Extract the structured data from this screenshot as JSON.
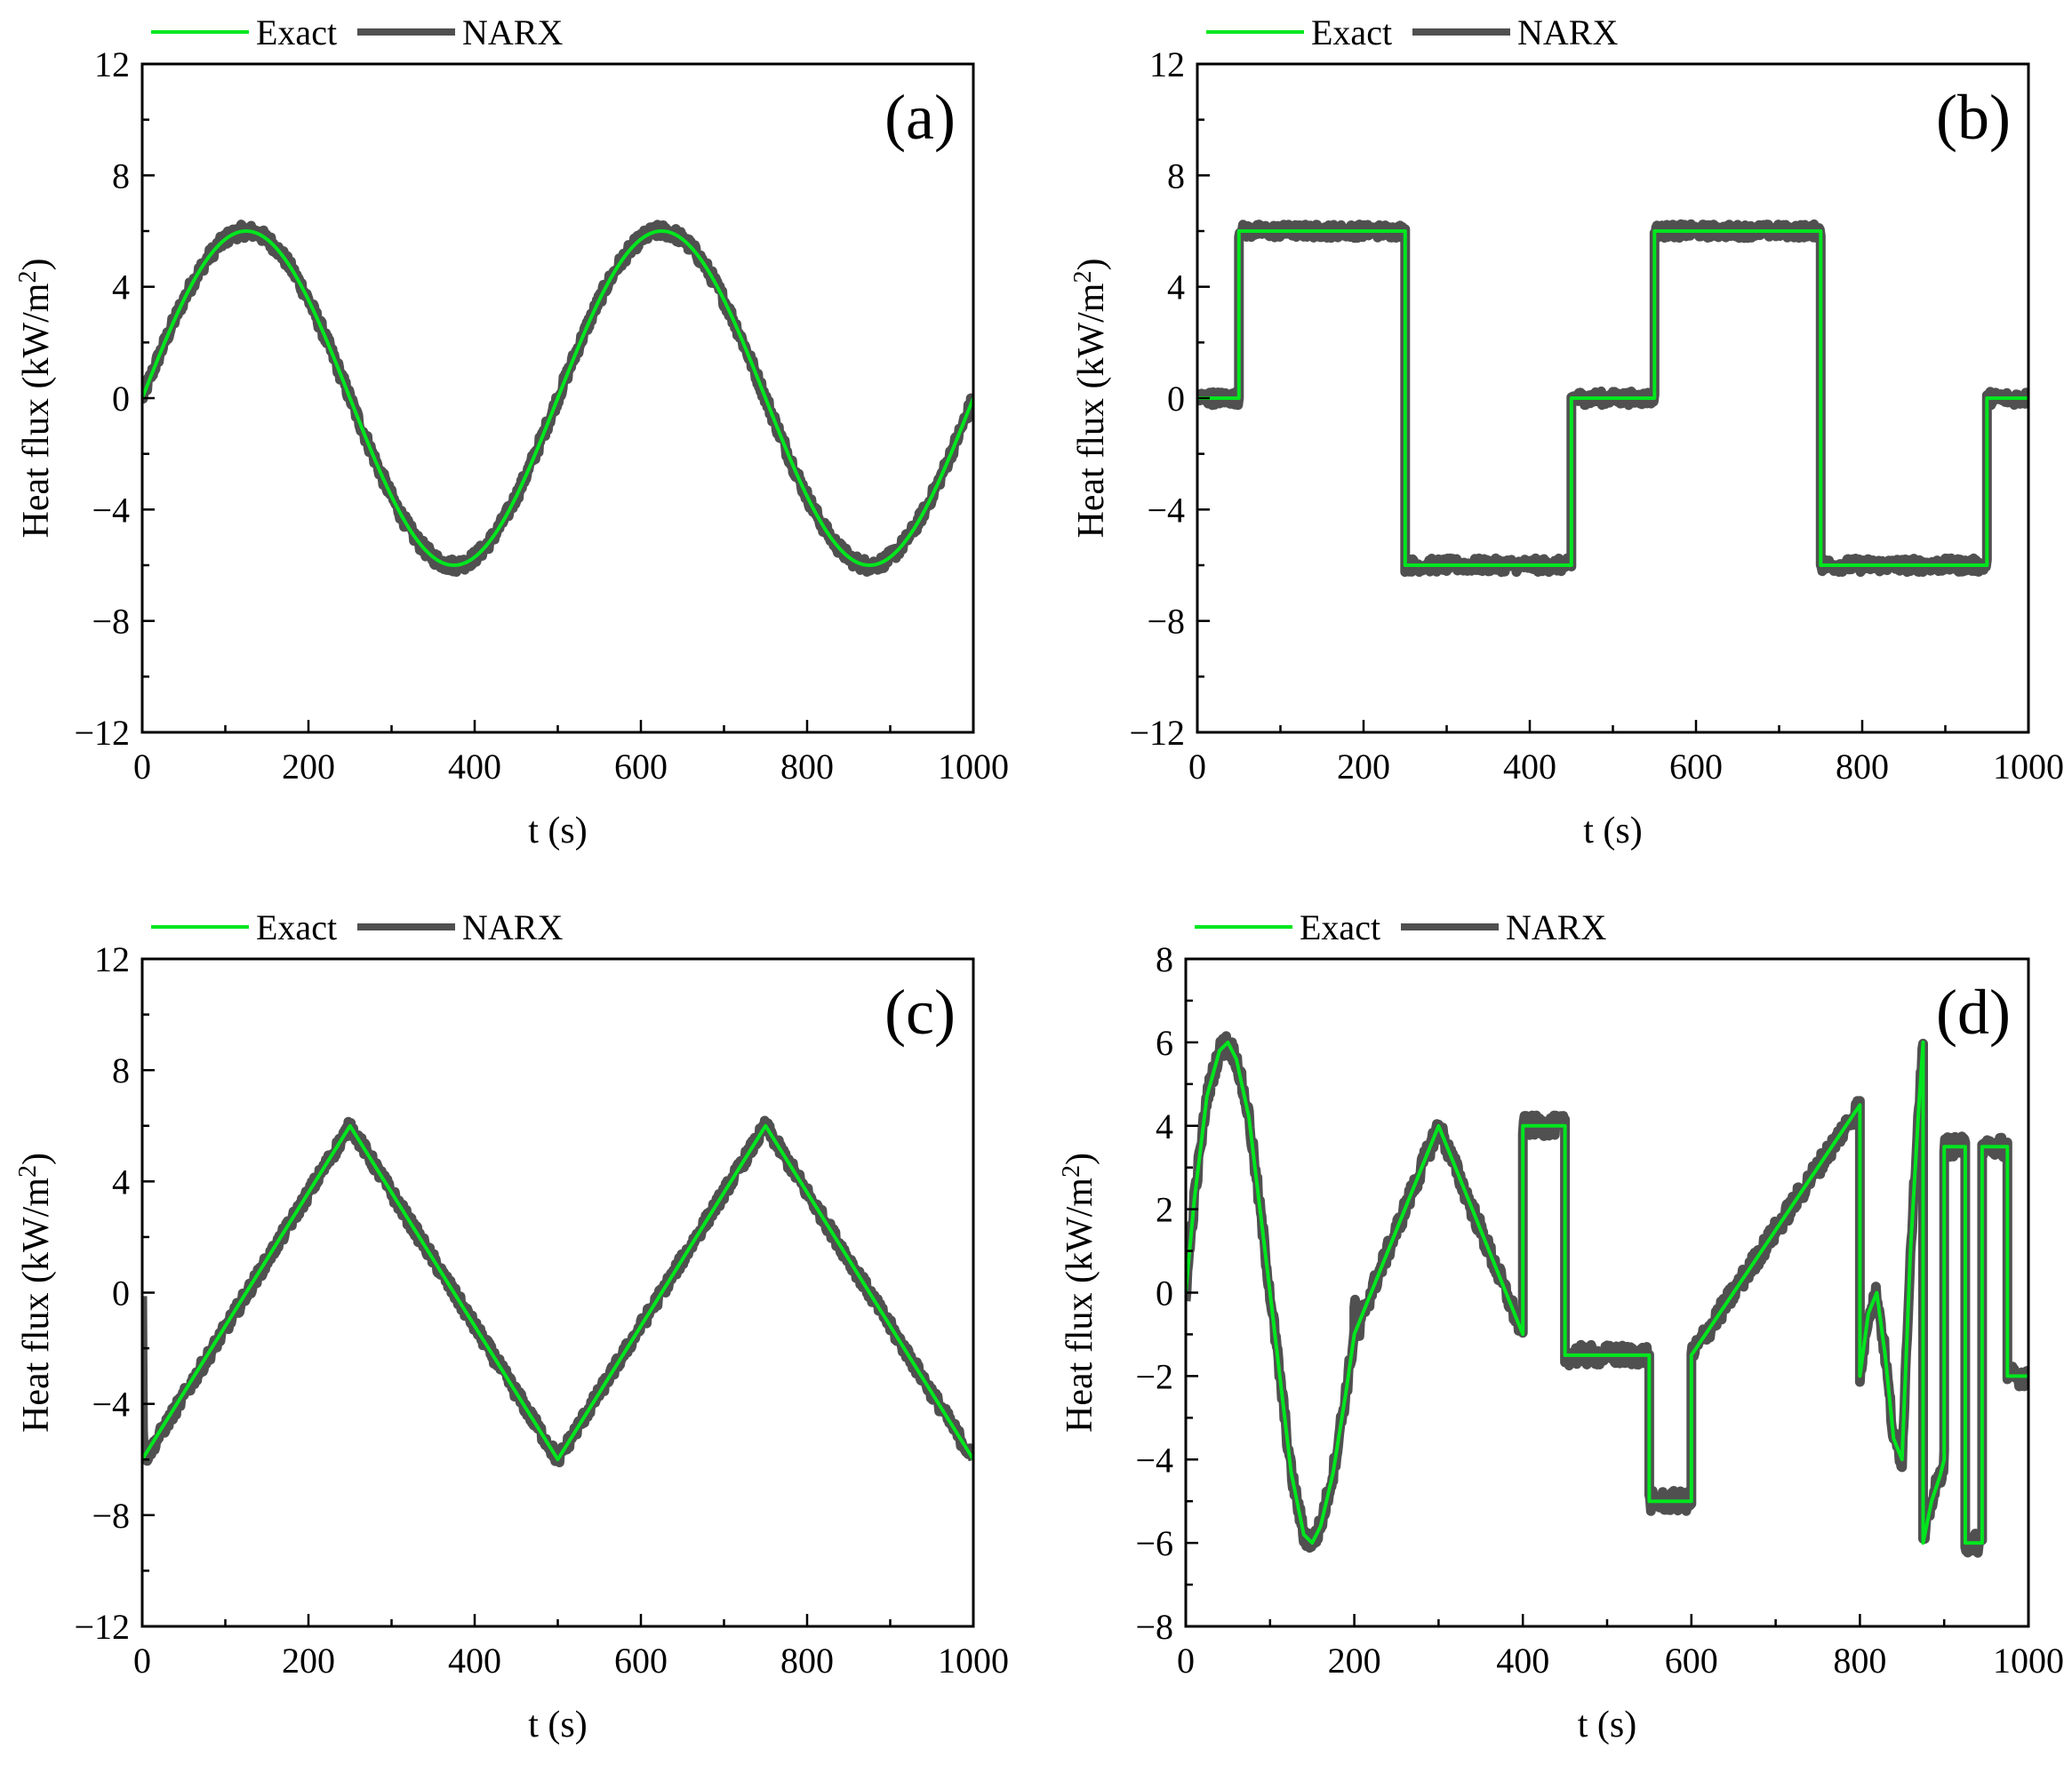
{
  "figure": {
    "legend": {
      "exact_label": "Exact",
      "narx_label": "NARX"
    },
    "colors": {
      "exact": "#00e61e",
      "narx": "#505050",
      "axis": "#000000"
    }
  },
  "chart_data": [
    {
      "id": "a",
      "type": "line",
      "panel_label": "(a)",
      "xlabel": "t (s)",
      "ylabel": "Heat flux (kW/m2)",
      "ylabel_text": "Heat flux (kW/m",
      "ylabel_sup": "2",
      "ylabel_close": ")",
      "xlim": [
        0,
        1000
      ],
      "ylim": [
        -12,
        12
      ],
      "xticks": [
        0,
        200,
        400,
        600,
        800,
        1000
      ],
      "yticks": [
        -12,
        -8,
        -4,
        0,
        4,
        8,
        12
      ],
      "xtick_labels": [
        "0",
        "200",
        "400",
        "600",
        "800",
        "1000"
      ],
      "ytick_labels": [
        "−12",
        "−8",
        "−4",
        "0",
        "4",
        "8",
        "12"
      ],
      "series": [
        {
          "name": "Exact",
          "kind": "sine",
          "amplitude": 6,
          "period": 500,
          "x": [
            0,
            125,
            250,
            375,
            500,
            625,
            750,
            875,
            1000
          ],
          "y": [
            0,
            6,
            0,
            -6,
            0,
            6,
            0,
            -6,
            0
          ]
        },
        {
          "name": "NARX",
          "kind": "sine",
          "amplitude": 6,
          "period": 500,
          "noise": 0.25
        }
      ]
    },
    {
      "id": "b",
      "type": "line",
      "panel_label": "(b)",
      "xlabel": "t (s)",
      "ylabel": "Heat flux (kW/m2)",
      "ylabel_text": "Heat flux (kW/m",
      "ylabel_sup": "2",
      "ylabel_close": ")",
      "xlim": [
        0,
        1000
      ],
      "ylim": [
        -12,
        12
      ],
      "xticks": [
        0,
        200,
        400,
        600,
        800,
        1000
      ],
      "yticks": [
        -12,
        -8,
        -4,
        0,
        4,
        8,
        12
      ],
      "xtick_labels": [
        "0",
        "200",
        "400",
        "600",
        "800",
        "1000"
      ],
      "ytick_labels": [
        "−12",
        "−8",
        "−4",
        "0",
        "4",
        "8",
        "12"
      ],
      "series": [
        {
          "name": "Exact",
          "kind": "points",
          "x": [
            0,
            50,
            50,
            250,
            250,
            450,
            450,
            550,
            550,
            750,
            750,
            950,
            950,
            1000
          ],
          "y": [
            0,
            0,
            6,
            6,
            -6,
            -6,
            0,
            0,
            6,
            6,
            -6,
            -6,
            0,
            0
          ]
        },
        {
          "name": "NARX",
          "kind": "points",
          "noise": 0.25,
          "x": [
            0,
            50,
            50,
            250,
            250,
            450,
            450,
            550,
            550,
            750,
            750,
            950,
            950,
            1000
          ],
          "y": [
            0,
            0,
            6,
            6,
            -6,
            -6,
            0,
            0,
            6,
            6,
            -6,
            -6,
            0,
            0
          ]
        }
      ]
    },
    {
      "id": "c",
      "type": "line",
      "panel_label": "(c)",
      "xlabel": "t (s)",
      "ylabel": "Heat flux (kW/m2)",
      "ylabel_text": "Heat flux (kW/m",
      "ylabel_sup": "2",
      "ylabel_close": ")",
      "xlim": [
        0,
        1000
      ],
      "ylim": [
        -12,
        12
      ],
      "xticks": [
        0,
        200,
        400,
        600,
        800,
        1000
      ],
      "yticks": [
        -12,
        -8,
        -4,
        0,
        4,
        8,
        12
      ],
      "xtick_labels": [
        "0",
        "200",
        "400",
        "600",
        "800",
        "1000"
      ],
      "ytick_labels": [
        "−12",
        "−8",
        "−4",
        "0",
        "4",
        "8",
        "12"
      ],
      "series": [
        {
          "name": "Exact",
          "kind": "points",
          "x": [
            0,
            250,
            500,
            750,
            1000
          ],
          "y": [
            -6,
            6,
            -6,
            6,
            -6
          ]
        },
        {
          "name": "NARX",
          "kind": "points",
          "noise": 0.25,
          "x": [
            0,
            1,
            3,
            250,
            500,
            750,
            1000
          ],
          "y": [
            0,
            -5,
            -6,
            6,
            -6,
            6,
            -6
          ]
        }
      ]
    },
    {
      "id": "d",
      "type": "line",
      "panel_label": "(d)",
      "xlabel": "t (s)",
      "ylabel": "Heat flux (kW/m2)",
      "ylabel_text": "Heat flux (kW/m",
      "ylabel_sup": "2",
      "ylabel_close": ")",
      "xlim": [
        0,
        1000
      ],
      "ylim": [
        -8,
        8
      ],
      "xticks": [
        0,
        200,
        400,
        600,
        800,
        1000
      ],
      "yticks": [
        -8,
        -6,
        -4,
        -2,
        0,
        2,
        4,
        6,
        8
      ],
      "xtick_labels": [
        "0",
        "200",
        "400",
        "600",
        "800",
        "1000"
      ],
      "ytick_labels": [
        "−8",
        "−6",
        "−4",
        "−2",
        "0",
        "2",
        "4",
        "6",
        "8"
      ],
      "series": [
        {
          "name": "Exact",
          "kind": "points",
          "x": [
            0,
            10,
            25,
            40,
            50,
            60,
            75,
            100,
            125,
            140,
            150,
            160,
            175,
            190,
            200,
            250,
            300,
            350,
            400,
            400,
            450,
            450,
            550,
            550,
            600,
            600,
            800,
            800,
            810,
            820,
            830,
            840,
            850,
            860,
            870,
            875,
            875,
            885,
            895,
            900,
            900,
            925,
            925,
            945,
            945,
            950,
            950,
            975,
            975,
            1000
          ],
          "y": [
            0,
            2.2,
            4.7,
            5.8,
            6,
            5.6,
            4.2,
            0,
            -4.3,
            -5.8,
            -6,
            -5.6,
            -4.3,
            -2.4,
            -1,
            1.5,
            4,
            1.5,
            -1,
            4,
            4,
            -1.5,
            -1.5,
            -5,
            -5,
            -1.5,
            4.5,
            -2,
            -0.5,
            0,
            -1.5,
            -3.5,
            -4,
            1,
            4.5,
            6,
            -6,
            -5,
            -4.4,
            -4,
            3.5,
            3.5,
            -6,
            -6,
            3.5,
            3.5,
            3.5,
            3.5,
            -2,
            -2
          ]
        },
        {
          "name": "NARX",
          "kind": "points",
          "noise": 0.25,
          "x": [
            0,
            10,
            25,
            40,
            50,
            60,
            75,
            100,
            125,
            140,
            150,
            160,
            175,
            190,
            200,
            200,
            202,
            205,
            210,
            250,
            300,
            350,
            400,
            400,
            450,
            450,
            550,
            550,
            600,
            600,
            800,
            800,
            810,
            820,
            830,
            840,
            850,
            860,
            870,
            875,
            875,
            885,
            895,
            900,
            900,
            925,
            925,
            945,
            945,
            950,
            950,
            975,
            975,
            1000
          ],
          "y": [
            0,
            2.2,
            4.7,
            5.8,
            6,
            5.6,
            4.2,
            0,
            -4.3,
            -5.8,
            -6,
            -5.6,
            -4.3,
            -2.4,
            -1,
            -0.2,
            -0.6,
            -1.1,
            -0.5,
            1.5,
            4,
            1.5,
            -1,
            4,
            4,
            -1.5,
            -1.5,
            -5,
            -5,
            -1.5,
            4.5,
            -2,
            -0.5,
            0,
            -1.5,
            -3.5,
            -4,
            1,
            4.5,
            6,
            -6,
            -5,
            -4.4,
            -4,
            3.5,
            3.5,
            -6,
            -6,
            3.5,
            3.5,
            3.5,
            3.5,
            -2,
            -2
          ]
        }
      ]
    }
  ]
}
